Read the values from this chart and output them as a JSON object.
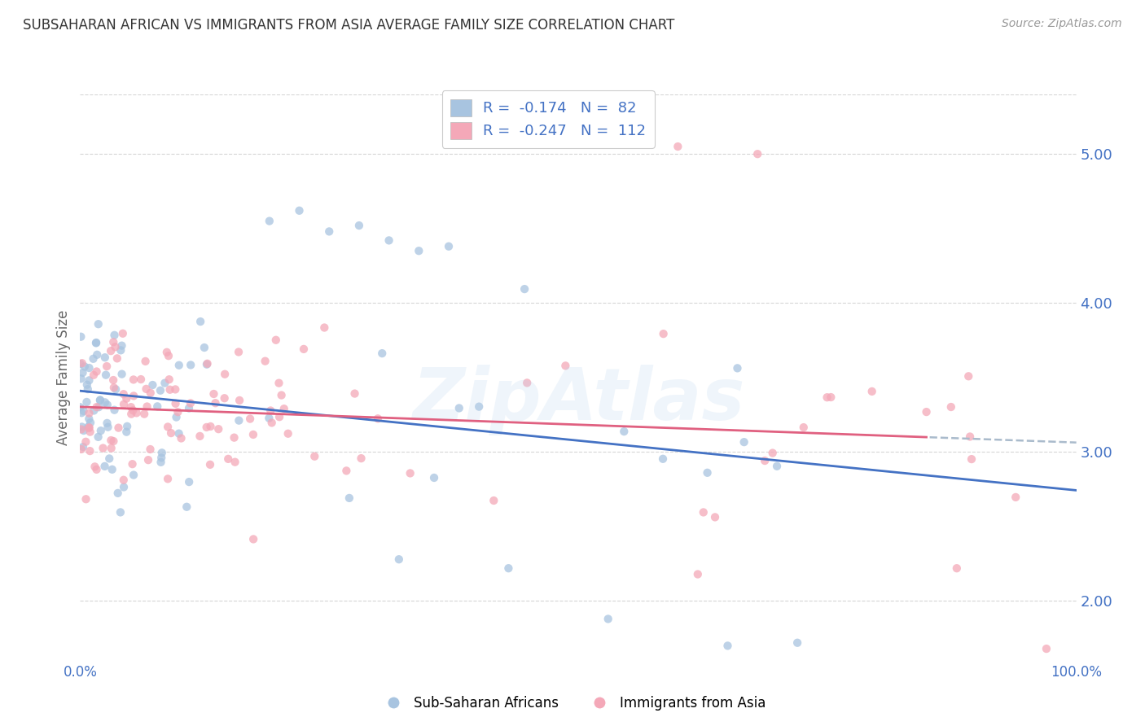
{
  "title": "SUBSAHARAN AFRICAN VS IMMIGRANTS FROM ASIA AVERAGE FAMILY SIZE CORRELATION CHART",
  "source": "Source: ZipAtlas.com",
  "ylabel": "Average Family Size",
  "xlim": [
    0,
    1
  ],
  "ylim": [
    1.6,
    5.4
  ],
  "yticks": [
    2.0,
    3.0,
    4.0,
    5.0
  ],
  "xticks": [
    0.0,
    1.0
  ],
  "xtick_labels": [
    "0.0%",
    "100.0%"
  ],
  "blue_r_val": "-0.174",
  "blue_n_val": "82",
  "pink_r_val": "-0.247",
  "pink_n_val": "112",
  "blue_scatter_color": "#a8c4e0",
  "pink_scatter_color": "#f4a8b8",
  "blue_line_color": "#4472c4",
  "pink_line_color": "#e06080",
  "blue_dashed_color": "#aabbdd",
  "watermark": "ZipAtlas",
  "title_color": "#333333",
  "axis_color": "#4472c4",
  "legend_text_color": "#4472c4",
  "grid_color": "#cccccc",
  "background_color": "#ffffff",
  "series1_label": "Sub-Saharan Africans",
  "series2_label": "Immigrants from Asia"
}
